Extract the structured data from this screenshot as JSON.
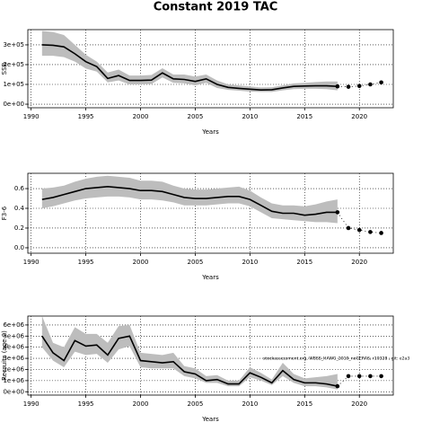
{
  "title": "Constant 2019 TAC",
  "chart_data": [
    {
      "type": "line",
      "ylabel": "SSB",
      "xlabel": "Years",
      "x": [
        1991,
        1992,
        1993,
        1994,
        1995,
        1996,
        1997,
        1998,
        1999,
        2000,
        2001,
        2002,
        2003,
        2004,
        2005,
        2006,
        2007,
        2008,
        2009,
        2010,
        2011,
        2012,
        2013,
        2014,
        2015,
        2016,
        2017,
        2018,
        2019,
        2020,
        2021,
        2022
      ],
      "xlim": [
        1989.7,
        2023.1
      ],
      "xticks": [
        1990,
        1995,
        2000,
        2005,
        2010,
        2015,
        2020
      ],
      "ylim": [
        -18000,
        377000
      ],
      "yticks": [
        {
          "value": 0,
          "label": "0e+00"
        },
        {
          "value": 100000,
          "label": "1e+05"
        },
        {
          "value": 200000,
          "label": "2e+05"
        },
        {
          "value": 300000,
          "label": "3e+05"
        }
      ],
      "grid": true,
      "band_color": "#bdbdbd",
      "series": [
        {
          "color": "#000000",
          "style": "line",
          "values": [
            300000,
            298000,
            290000,
            255000,
            215000,
            190000,
            130000,
            145000,
            120000,
            120000,
            122000,
            158000,
            128000,
            125000,
            115000,
            128000,
            100000,
            85000,
            80000,
            76000,
            72000,
            73000,
            82000,
            90000,
            92000,
            93000,
            93000,
            90000,
            null,
            null,
            null,
            null
          ],
          "lower": [
            245000,
            245000,
            238000,
            215000,
            180000,
            165000,
            110000,
            120000,
            100000,
            100000,
            102000,
            135000,
            108000,
            105000,
            95000,
            108000,
            82000,
            72000,
            68000,
            64000,
            62000,
            62000,
            70000,
            76000,
            78000,
            78000,
            76000,
            70000,
            null,
            null,
            null,
            null
          ],
          "upper": [
            370000,
            365000,
            350000,
            300000,
            250000,
            215000,
            160000,
            175000,
            145000,
            145000,
            148000,
            182000,
            150000,
            150000,
            140000,
            150000,
            120000,
            100000,
            95000,
            90000,
            85000,
            86000,
            95000,
            105000,
            108000,
            112000,
            115000,
            115000,
            null,
            null,
            null,
            null
          ]
        },
        {
          "color": "#000000",
          "style": "points",
          "values": [
            null,
            null,
            null,
            null,
            null,
            null,
            null,
            null,
            null,
            null,
            null,
            null,
            null,
            null,
            null,
            null,
            null,
            null,
            null,
            null,
            null,
            null,
            null,
            null,
            null,
            null,
            null,
            90000,
            88000,
            92000,
            100000,
            110000
          ]
        }
      ]
    },
    {
      "type": "line",
      "ylabel": "F3-6",
      "xlabel": "Years",
      "x": [
        1991,
        1992,
        1993,
        1994,
        1995,
        1996,
        1997,
        1998,
        1999,
        2000,
        2001,
        2002,
        2003,
        2004,
        2005,
        2006,
        2007,
        2008,
        2009,
        2010,
        2011,
        2012,
        2013,
        2014,
        2015,
        2016,
        2017,
        2018,
        2019,
        2020,
        2021,
        2022
      ],
      "xlim": [
        1989.7,
        2023.1
      ],
      "xticks": [
        1990,
        1995,
        2000,
        2005,
        2010,
        2015,
        2020
      ],
      "ylim": [
        -0.055,
        0.755
      ],
      "yticks": [
        {
          "value": 0,
          "label": "0.0"
        },
        0.2,
        0.4,
        0.6
      ],
      "grid": true,
      "band_color": "#bdbdbd",
      "series": [
        {
          "color": "#000000",
          "style": "line",
          "values": [
            0.49,
            0.51,
            0.54,
            0.57,
            0.6,
            0.61,
            0.62,
            0.61,
            0.6,
            0.58,
            0.58,
            0.57,
            0.54,
            0.51,
            0.5,
            0.5,
            0.51,
            0.52,
            0.52,
            0.49,
            0.43,
            0.37,
            0.35,
            0.35,
            0.33,
            0.34,
            0.36,
            0.36,
            null,
            null,
            null,
            null
          ],
          "lower": [
            0.4,
            0.42,
            0.45,
            0.48,
            0.5,
            0.51,
            0.52,
            0.52,
            0.51,
            0.49,
            0.49,
            0.48,
            0.46,
            0.43,
            0.43,
            0.43,
            0.44,
            0.45,
            0.45,
            0.42,
            0.36,
            0.3,
            0.29,
            0.28,
            0.27,
            0.26,
            0.26,
            0.25,
            null,
            null,
            null,
            null
          ],
          "upper": [
            0.6,
            0.61,
            0.63,
            0.67,
            0.7,
            0.72,
            0.73,
            0.72,
            0.71,
            0.68,
            0.68,
            0.67,
            0.63,
            0.6,
            0.59,
            0.59,
            0.6,
            0.61,
            0.62,
            0.58,
            0.51,
            0.45,
            0.43,
            0.43,
            0.42,
            0.44,
            0.47,
            0.49,
            null,
            null,
            null,
            null
          ]
        },
        {
          "color": "#000000",
          "style": "points",
          "values": [
            null,
            null,
            null,
            null,
            null,
            null,
            null,
            null,
            null,
            null,
            null,
            null,
            null,
            null,
            null,
            null,
            null,
            null,
            null,
            null,
            null,
            null,
            null,
            null,
            null,
            null,
            null,
            0.36,
            0.2,
            0.18,
            0.16,
            0.15
          ]
        }
      ]
    },
    {
      "type": "line",
      "ylabel": "Recruits (age 0)",
      "xlabel": "Years",
      "annotation": "stockassessment.org, WBSS_HAWG_2019_noGERAS, r10328 , git: e2a3",
      "x": [
        1991,
        1992,
        1993,
        1994,
        1995,
        1996,
        1997,
        1998,
        1999,
        2000,
        2001,
        2002,
        2003,
        2004,
        2005,
        2006,
        2007,
        2008,
        2009,
        2010,
        2011,
        2012,
        2013,
        2014,
        2015,
        2016,
        2017,
        2018,
        2019,
        2020,
        2021,
        2022
      ],
      "xlim": [
        1989.7,
        2023.1
      ],
      "xticks": [
        1990,
        1995,
        2000,
        2005,
        2010,
        2015,
        2020
      ],
      "ylim": [
        -300000,
        6800000
      ],
      "yticks": [
        {
          "value": 0,
          "label": "0e+00"
        },
        {
          "value": 1000000,
          "label": "1e+06"
        },
        {
          "value": 2000000,
          "label": "2e+06"
        },
        {
          "value": 3000000,
          "label": "3e+06"
        },
        {
          "value": 4000000,
          "label": "4e+06"
        },
        {
          "value": 5000000,
          "label": "5e+06"
        },
        {
          "value": 6000000,
          "label": "6e+06"
        }
      ],
      "grid": true,
      "band_color": "#bdbdbd",
      "series": [
        {
          "color": "#000000",
          "style": "line",
          "values": [
            5000000,
            3500000,
            2800000,
            4600000,
            4100000,
            4200000,
            3300000,
            4800000,
            5000000,
            2800000,
            2700000,
            2600000,
            2700000,
            1800000,
            1600000,
            1000000,
            1100000,
            700000,
            700000,
            1700000,
            1300000,
            800000,
            1900000,
            1100000,
            800000,
            800000,
            700000,
            500000,
            null,
            null,
            null,
            null
          ],
          "lower": [
            4000000,
            2800000,
            2200000,
            3600000,
            3300000,
            3400000,
            2600000,
            3800000,
            4100000,
            2200000,
            2100000,
            2100000,
            2100000,
            1400000,
            1200000,
            800000,
            800000,
            500000,
            500000,
            1300000,
            1000000,
            600000,
            1400000,
            800000,
            500000,
            500000,
            400000,
            200000,
            null,
            null,
            null,
            null
          ],
          "upper": [
            6800000,
            4400000,
            4000000,
            5800000,
            5200000,
            5200000,
            4400000,
            5900000,
            6000000,
            3500000,
            3400000,
            3300000,
            3500000,
            2300000,
            2100000,
            1400000,
            1500000,
            1000000,
            1000000,
            2200000,
            1700000,
            1100000,
            2600000,
            1600000,
            1200000,
            1300000,
            1400000,
            1600000,
            null,
            null,
            null,
            null
          ]
        },
        {
          "color": "#000000",
          "style": "points",
          "values": [
            null,
            null,
            null,
            null,
            null,
            null,
            null,
            null,
            null,
            null,
            null,
            null,
            null,
            null,
            null,
            null,
            null,
            null,
            null,
            null,
            null,
            null,
            null,
            null,
            null,
            null,
            null,
            500000,
            1400000,
            1400000,
            1400000,
            1400000
          ]
        }
      ]
    }
  ]
}
